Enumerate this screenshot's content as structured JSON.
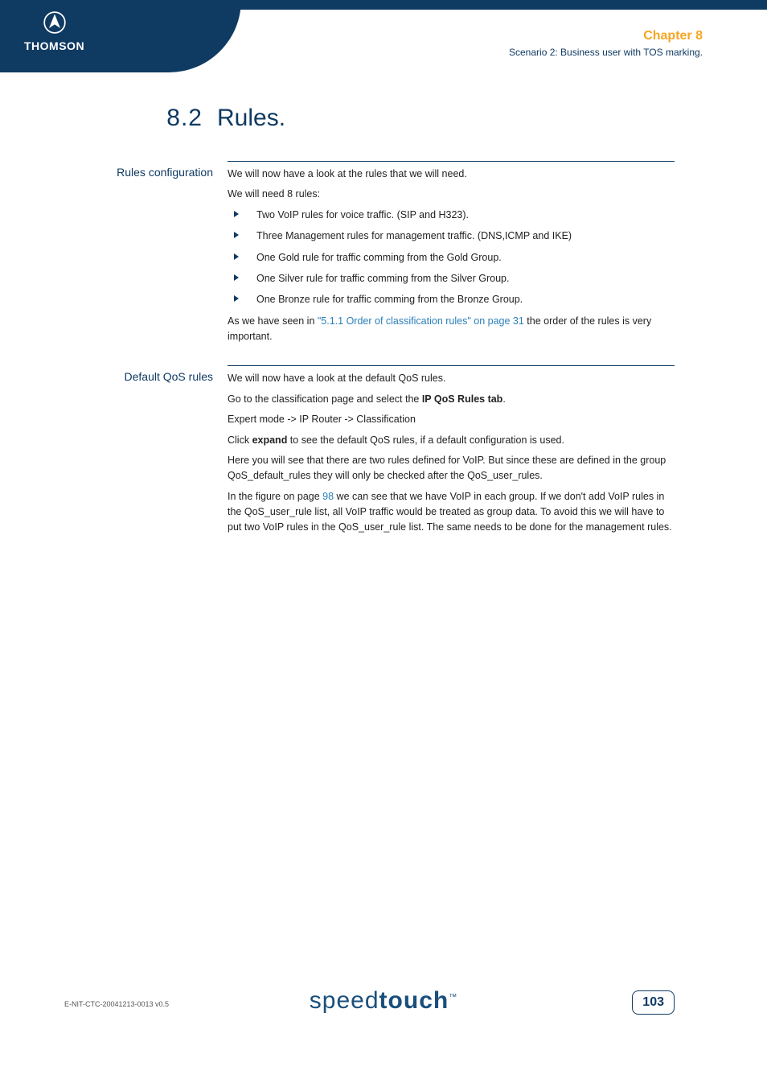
{
  "header": {
    "logo_text": "THOMSON",
    "chapter_label": "Chapter 8",
    "chapter_subtitle": "Scenario 2: Business user with TOS marking."
  },
  "section": {
    "number": "8.2",
    "title": "Rules."
  },
  "blocks": [
    {
      "label": "Rules configuration",
      "paragraphs_before": [
        "We will now have a look at the rules that we will need.",
        "We will need 8 rules:"
      ],
      "bullets": [
        "Two VoIP rules for voice traffic. (SIP and H323).",
        "Three Management rules for management traffic. (DNS,ICMP and IKE)",
        "One Gold rule for traffic comming from the Gold Group.",
        "One Silver rule for traffic comming from the Silver Group.",
        "One Bronze rule for traffic comming from the Bronze Group."
      ],
      "after_html": "As we have seen in <span class='link'>\"5.1.1 Order of classification rules\" on page 31</span> the order of the rules is very important."
    },
    {
      "label": "Default QoS rules",
      "paragraphs_html": [
        "We will now have a look at the default QoS rules.",
        "Go to the classification page and select the <span class='bold'>IP QoS Rules tab</span>.",
        "Expert mode -> IP Router -> Classification",
        "Click <span class='bold'>expand</span> to see the default QoS rules, if a default configuration is used.",
        "Here you will see that there are two rules defined for VoIP. But since these are defined in the group QoS_default_rules they will only be checked after the QoS_user_rules.",
        "In the figure on page <span class='link'>98</span> we can see that we have VoIP in each group. If we don't add VoIP rules in the QoS_user_rule list, all VoIP traffic would be treated as group data. To avoid this we will have to put two VoIP rules in the QoS_user_rule list. The same needs to be done for the management rules."
      ]
    }
  ],
  "footer": {
    "doc_id": "E-NIT-CTC-20041213-0013 v0.5",
    "logo_light": "speed",
    "logo_bold": "touch",
    "logo_tm": "™",
    "page_number": "103"
  },
  "colors": {
    "navy": "#0f3a62",
    "orange": "#f5a623",
    "link": "#2a7fb8",
    "text": "#222222",
    "white": "#ffffff"
  },
  "typography": {
    "heading_family": "Trebuchet MS",
    "body_family": "Verdana",
    "heading_size_pt": 22,
    "body_size_pt": 9.5,
    "label_size_pt": 10.5
  }
}
